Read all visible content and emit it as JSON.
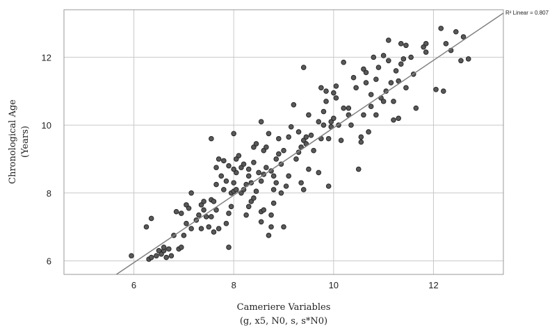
{
  "chart_data": {
    "type": "scatter",
    "xlabel": "Cameriere Variables",
    "xlabel_sub": "(g, x5, N0, s, s*N0)",
    "ylabel": "Chronological Age",
    "ylabel_sub": "(Years)",
    "xlim": [
      4.6,
      13.4
    ],
    "ylim": [
      5.6,
      13.4
    ],
    "xticks": [
      6,
      8,
      10,
      12
    ],
    "yticks": [
      6,
      8,
      10,
      12
    ],
    "grid": true,
    "fit_line": {
      "label": "R² Linear = 0.807",
      "x": [
        5.65,
        13.4
      ],
      "y": [
        5.6,
        13.3
      ]
    },
    "points": [
      [
        5.95,
        6.15
      ],
      [
        6.3,
        6.05
      ],
      [
        6.35,
        6.1
      ],
      [
        6.45,
        6.15
      ],
      [
        6.55,
        6.2
      ],
      [
        6.6,
        6.3
      ],
      [
        6.5,
        6.3
      ],
      [
        6.6,
        6.4
      ],
      [
        6.7,
        6.35
      ],
      [
        6.65,
        6.1
      ],
      [
        6.75,
        6.15
      ],
      [
        6.9,
        6.35
      ],
      [
        6.95,
        6.4
      ],
      [
        6.25,
        7.0
      ],
      [
        6.35,
        7.25
      ],
      [
        6.8,
        6.75
      ],
      [
        6.85,
        7.45
      ],
      [
        6.95,
        7.4
      ],
      [
        7.05,
        7.65
      ],
      [
        7.1,
        7.55
      ],
      [
        7.15,
        8.0
      ],
      [
        7.0,
        6.75
      ],
      [
        7.05,
        7.1
      ],
      [
        7.15,
        6.95
      ],
      [
        7.25,
        7.2
      ],
      [
        7.3,
        7.35
      ],
      [
        7.4,
        7.5
      ],
      [
        7.45,
        7.3
      ],
      [
        7.5,
        7.0
      ],
      [
        7.35,
        6.95
      ],
      [
        7.35,
        7.65
      ],
      [
        7.4,
        7.75
      ],
      [
        7.55,
        7.3
      ],
      [
        7.6,
        6.85
      ],
      [
        7.7,
        6.95
      ],
      [
        7.65,
        7.5
      ],
      [
        7.55,
        7.8
      ],
      [
        7.6,
        7.75
      ],
      [
        7.65,
        8.25
      ],
      [
        7.55,
        9.6
      ],
      [
        7.65,
        8.75
      ],
      [
        7.7,
        9.0
      ],
      [
        7.75,
        8.5
      ],
      [
        7.8,
        8.95
      ],
      [
        7.85,
        7.1
      ],
      [
        7.9,
        7.4
      ],
      [
        7.9,
        6.4
      ],
      [
        7.95,
        7.6
      ],
      [
        7.8,
        8.1
      ],
      [
        7.85,
        8.35
      ],
      [
        7.9,
        8.8
      ],
      [
        7.95,
        8.0
      ],
      [
        8.0,
        8.05
      ],
      [
        8.05,
        8.1
      ],
      [
        8.0,
        8.3
      ],
      [
        8.05,
        8.6
      ],
      [
        8.0,
        8.7
      ],
      [
        8.05,
        9.0
      ],
      [
        8.1,
        9.1
      ],
      [
        8.0,
        9.75
      ],
      [
        8.15,
        8.75
      ],
      [
        8.15,
        8.0
      ],
      [
        8.2,
        8.1
      ],
      [
        8.25,
        8.25
      ],
      [
        8.2,
        8.85
      ],
      [
        8.3,
        8.7
      ],
      [
        8.25,
        7.35
      ],
      [
        8.3,
        7.6
      ],
      [
        8.35,
        7.75
      ],
      [
        8.4,
        7.85
      ],
      [
        8.3,
        8.5
      ],
      [
        8.35,
        8.3
      ],
      [
        8.4,
        9.35
      ],
      [
        8.45,
        9.45
      ],
      [
        8.4,
        8.9
      ],
      [
        8.45,
        8.05
      ],
      [
        8.5,
        8.6
      ],
      [
        8.55,
        7.15
      ],
      [
        8.55,
        7.45
      ],
      [
        8.6,
        7.5
      ],
      [
        8.55,
        8.35
      ],
      [
        8.6,
        8.55
      ],
      [
        8.65,
        8.75
      ],
      [
        8.6,
        9.25
      ],
      [
        8.65,
        9.35
      ],
      [
        8.55,
        10.1
      ],
      [
        8.7,
        9.75
      ],
      [
        8.7,
        6.75
      ],
      [
        8.75,
        7.0
      ],
      [
        8.75,
        7.35
      ],
      [
        8.8,
        7.7
      ],
      [
        8.8,
        8.1
      ],
      [
        8.8,
        8.5
      ],
      [
        8.75,
        8.65
      ],
      [
        8.85,
        8.3
      ],
      [
        8.85,
        9.0
      ],
      [
        8.9,
        9.15
      ],
      [
        8.9,
        9.6
      ],
      [
        8.95,
        8.0
      ],
      [
        8.95,
        8.85
      ],
      [
        9.0,
        9.25
      ],
      [
        9.0,
        7.0
      ],
      [
        9.05,
        8.2
      ],
      [
        9.1,
        8.5
      ],
      [
        9.1,
        9.65
      ],
      [
        9.15,
        9.95
      ],
      [
        9.2,
        10.6
      ],
      [
        9.25,
        9.0
      ],
      [
        9.3,
        9.2
      ],
      [
        9.3,
        9.8
      ],
      [
        9.35,
        9.35
      ],
      [
        9.4,
        9.55
      ],
      [
        9.35,
        8.3
      ],
      [
        9.4,
        8.1
      ],
      [
        9.45,
        9.65
      ],
      [
        9.45,
        9.45
      ],
      [
        9.4,
        11.7
      ],
      [
        9.5,
        8.7
      ],
      [
        9.55,
        9.7
      ],
      [
        9.5,
        10.3
      ],
      [
        9.6,
        9.25
      ],
      [
        9.7,
        8.6
      ],
      [
        9.7,
        10.1
      ],
      [
        9.75,
        9.6
      ],
      [
        9.75,
        11.1
      ],
      [
        9.8,
        10.0
      ],
      [
        9.8,
        10.4
      ],
      [
        9.85,
        11.0
      ],
      [
        9.85,
        10.7
      ],
      [
        9.9,
        9.6
      ],
      [
        9.9,
        8.2
      ],
      [
        9.95,
        9.95
      ],
      [
        9.95,
        10.1
      ],
      [
        10.0,
        10.95
      ],
      [
        10.0,
        10.2
      ],
      [
        10.05,
        11.15
      ],
      [
        10.05,
        10.8
      ],
      [
        10.1,
        10.0
      ],
      [
        10.15,
        9.55
      ],
      [
        10.2,
        10.5
      ],
      [
        10.2,
        11.85
      ],
      [
        10.3,
        10.3
      ],
      [
        10.3,
        10.5
      ],
      [
        10.35,
        10.0
      ],
      [
        10.4,
        11.4
      ],
      [
        10.45,
        11.1
      ],
      [
        10.5,
        8.7
      ],
      [
        10.55,
        9.65
      ],
      [
        10.55,
        9.5
      ],
      [
        10.6,
        10.3
      ],
      [
        10.6,
        11.65
      ],
      [
        10.65,
        11.55
      ],
      [
        10.65,
        11.25
      ],
      [
        10.7,
        9.8
      ],
      [
        10.75,
        10.55
      ],
      [
        10.75,
        10.9
      ],
      [
        10.8,
        12.0
      ],
      [
        10.85,
        11.35
      ],
      [
        10.85,
        10.3
      ],
      [
        10.9,
        11.7
      ],
      [
        10.95,
        10.8
      ],
      [
        11.0,
        12.05
      ],
      [
        11.0,
        10.7
      ],
      [
        11.05,
        11.0
      ],
      [
        11.1,
        11.9
      ],
      [
        11.1,
        12.5
      ],
      [
        11.15,
        11.25
      ],
      [
        11.2,
        10.7
      ],
      [
        11.2,
        10.15
      ],
      [
        11.25,
        11.6
      ],
      [
        11.3,
        11.3
      ],
      [
        11.3,
        10.2
      ],
      [
        11.35,
        12.4
      ],
      [
        11.35,
        11.8
      ],
      [
        11.4,
        11.95
      ],
      [
        11.45,
        12.35
      ],
      [
        11.45,
        11.1
      ],
      [
        11.55,
        12.0
      ],
      [
        11.6,
        11.5
      ],
      [
        11.65,
        10.5
      ],
      [
        11.8,
        12.3
      ],
      [
        11.85,
        12.4
      ],
      [
        11.85,
        12.15
      ],
      [
        12.05,
        11.05
      ],
      [
        12.15,
        12.85
      ],
      [
        12.2,
        11.0
      ],
      [
        12.25,
        12.4
      ],
      [
        12.35,
        12.2
      ],
      [
        12.45,
        12.75
      ],
      [
        12.55,
        11.9
      ],
      [
        12.6,
        12.6
      ],
      [
        12.7,
        11.95
      ]
    ]
  }
}
